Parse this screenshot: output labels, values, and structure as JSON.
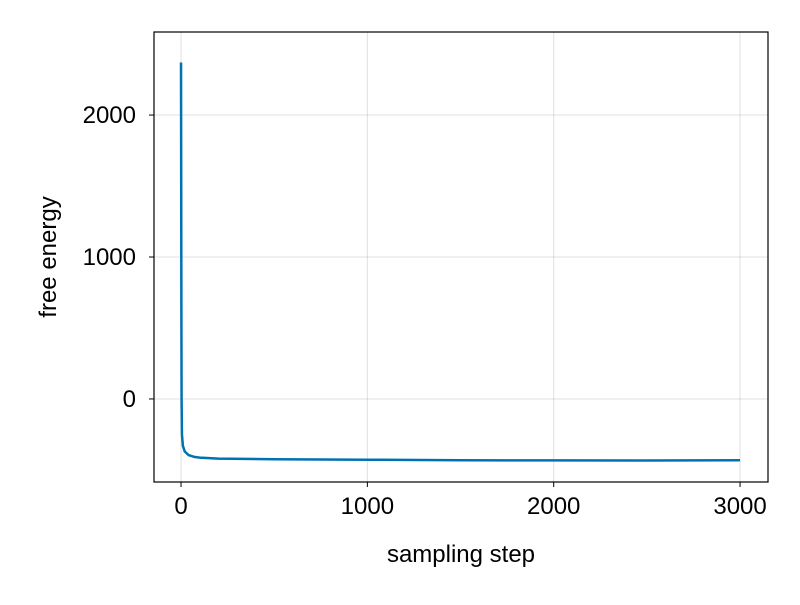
{
  "chart_data": {
    "type": "line",
    "title": "",
    "xlabel": "sampling step",
    "ylabel": "free energy",
    "xlim": [
      -145,
      3150
    ],
    "ylim": [
      -585,
      2585
    ],
    "xticks": [
      0,
      1000,
      2000,
      3000
    ],
    "yticks": [
      0,
      1000,
      2000
    ],
    "xtick_labels": [
      "0",
      "1000",
      "2000",
      "3000"
    ],
    "ytick_labels": [
      "0",
      "1000",
      "2000"
    ],
    "grid": true,
    "series": [
      {
        "color": "#0072b2",
        "points": [
          [
            0,
            2370
          ],
          [
            1,
            1500
          ],
          [
            2,
            600
          ],
          [
            3,
            0
          ],
          [
            5,
            -250
          ],
          [
            10,
            -330
          ],
          [
            20,
            -370
          ],
          [
            40,
            -395
          ],
          [
            70,
            -408
          ],
          [
            100,
            -413
          ],
          [
            200,
            -420
          ],
          [
            500,
            -425
          ],
          [
            1000,
            -428
          ],
          [
            1500,
            -432
          ],
          [
            2000,
            -433
          ],
          [
            2500,
            -434
          ],
          [
            3000,
            -432
          ]
        ]
      }
    ]
  }
}
